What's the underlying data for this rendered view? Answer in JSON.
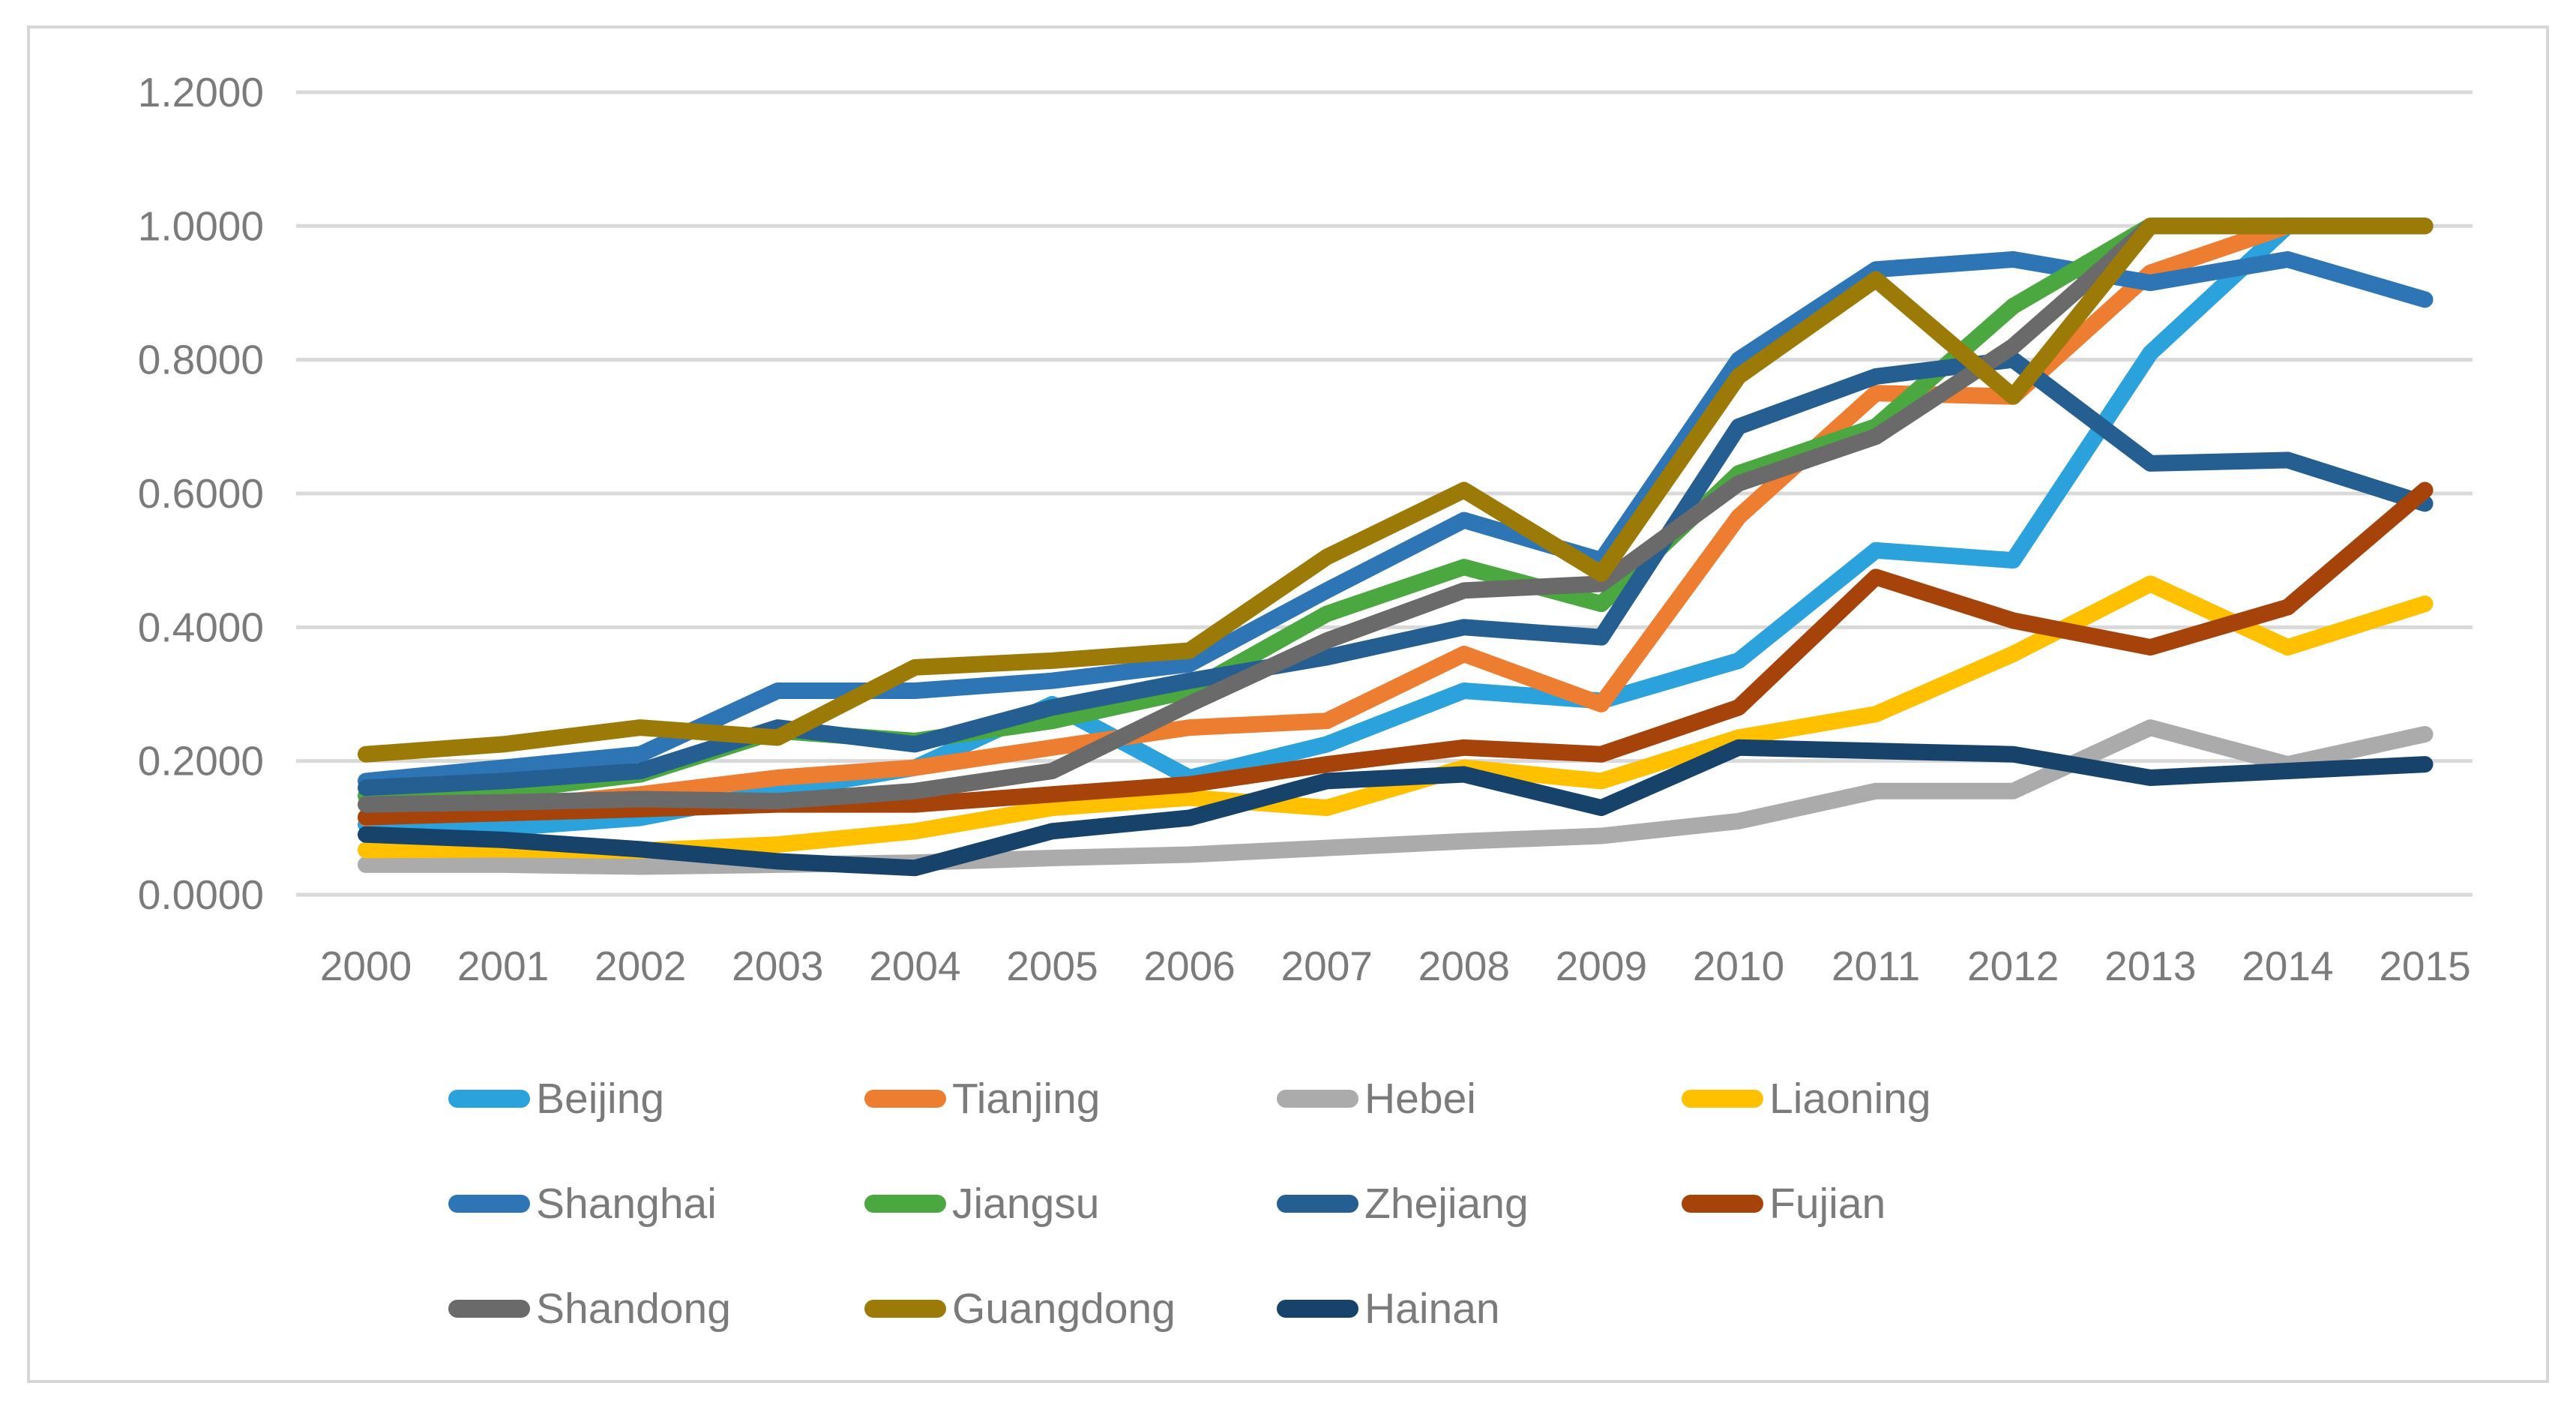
{
  "chart_data": {
    "type": "line",
    "title": "",
    "xlabel": "",
    "ylabel": "",
    "x": [
      "2000",
      "2001",
      "2002",
      "2003",
      "2004",
      "2005",
      "2006",
      "2007",
      "2008",
      "2009",
      "2010",
      "2011",
      "2012",
      "2013",
      "2014",
      "2015"
    ],
    "y_axis": {
      "min": 0.0,
      "max": 1.2,
      "step": 0.2,
      "tick_labels": [
        "0.0000",
        "0.2000",
        "0.4000",
        "0.6000",
        "0.8000",
        "1.0000",
        "1.2000"
      ]
    },
    "grid": true,
    "legend_position": "bottom",
    "series": [
      {
        "name": "Beijing",
        "color": "#2BA2DC",
        "values": [
          0.105,
          0.1,
          0.115,
          0.155,
          0.19,
          0.285,
          0.175,
          0.225,
          0.305,
          0.29,
          0.35,
          0.515,
          0.5,
          0.81,
          1.0,
          1.0
        ]
      },
      {
        "name": "Tianjing",
        "color": "#ED7D31",
        "values": [
          0.115,
          0.13,
          0.15,
          0.175,
          0.19,
          0.22,
          0.25,
          0.26,
          0.36,
          0.285,
          0.565,
          0.75,
          0.745,
          0.93,
          1.0,
          1.0
        ]
      },
      {
        "name": "Hebei",
        "color": "#ABABAB",
        "values": [
          0.045,
          0.045,
          0.042,
          0.045,
          0.048,
          0.055,
          0.06,
          0.07,
          0.08,
          0.088,
          0.11,
          0.155,
          0.155,
          0.25,
          0.195,
          0.24
        ]
      },
      {
        "name": "Liaoning",
        "color": "#FFC000",
        "values": [
          0.067,
          0.068,
          0.066,
          0.075,
          0.095,
          0.13,
          0.145,
          0.13,
          0.19,
          0.17,
          0.235,
          0.27,
          0.36,
          0.465,
          0.37,
          0.435
        ]
      },
      {
        "name": "Shanghai",
        "color": "#2E75B6",
        "values": [
          0.17,
          0.19,
          0.21,
          0.305,
          0.305,
          0.32,
          0.345,
          0.455,
          0.56,
          0.5,
          0.8,
          0.935,
          0.95,
          0.915,
          0.95,
          0.89
        ]
      },
      {
        "name": "Jiangsu",
        "color": "#4BA740",
        "values": [
          0.148,
          0.155,
          0.18,
          0.245,
          0.23,
          0.26,
          0.305,
          0.42,
          0.49,
          0.435,
          0.63,
          0.7,
          0.88,
          1.0,
          1.0,
          1.0
        ]
      },
      {
        "name": "Zhejiang",
        "color": "#255E91",
        "values": [
          0.16,
          0.17,
          0.185,
          0.25,
          0.225,
          0.28,
          0.32,
          0.355,
          0.4,
          0.385,
          0.7,
          0.775,
          0.8,
          0.645,
          0.65,
          0.585
        ]
      },
      {
        "name": "Fujian",
        "color": "#A5430B",
        "values": [
          0.116,
          0.122,
          0.128,
          0.135,
          0.135,
          0.15,
          0.165,
          0.195,
          0.22,
          0.21,
          0.28,
          0.475,
          0.41,
          0.37,
          0.43,
          0.605
        ]
      },
      {
        "name": "Shandong",
        "color": "#6A6A6A",
        "values": [
          0.135,
          0.138,
          0.143,
          0.14,
          0.155,
          0.185,
          0.285,
          0.38,
          0.455,
          0.465,
          0.615,
          0.685,
          0.82,
          1.0,
          1.0,
          1.0
        ]
      },
      {
        "name": "Guangdong",
        "color": "#9C7A08",
        "values": [
          0.21,
          0.225,
          0.25,
          0.235,
          0.34,
          0.35,
          0.365,
          0.505,
          0.605,
          0.48,
          0.775,
          0.92,
          0.745,
          1.0,
          1.0,
          1.0
        ]
      },
      {
        "name": "Hainan",
        "color": "#17436B",
        "values": [
          0.09,
          0.082,
          0.068,
          0.05,
          0.04,
          0.095,
          0.115,
          0.17,
          0.18,
          0.13,
          0.22,
          0.215,
          0.21,
          0.175,
          0.185,
          0.195
        ]
      }
    ]
  },
  "styles": {
    "grid_color": "#D9D9D9",
    "border_color": "#D6D6D6",
    "axis_text_color": "#7B7B7B",
    "legend_text_color": "#7B7B7B",
    "background": "#FFFFFF"
  }
}
